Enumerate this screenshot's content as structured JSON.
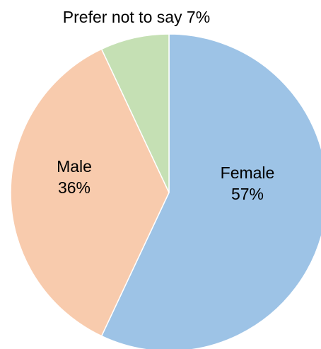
{
  "chart_data": {
    "type": "pie",
    "title": "",
    "start_angle_deg": 0,
    "direction": "clockwise",
    "slices": [
      {
        "label": "Female",
        "value": 57,
        "display_value": "57%",
        "color": "#9DC3E6"
      },
      {
        "label": "Male",
        "value": 36,
        "display_value": "36%",
        "color": "#F8CBAD"
      },
      {
        "label": "Prefer not to say",
        "value": 7,
        "display_value": "7%",
        "color": "#C5E0B4"
      }
    ]
  }
}
